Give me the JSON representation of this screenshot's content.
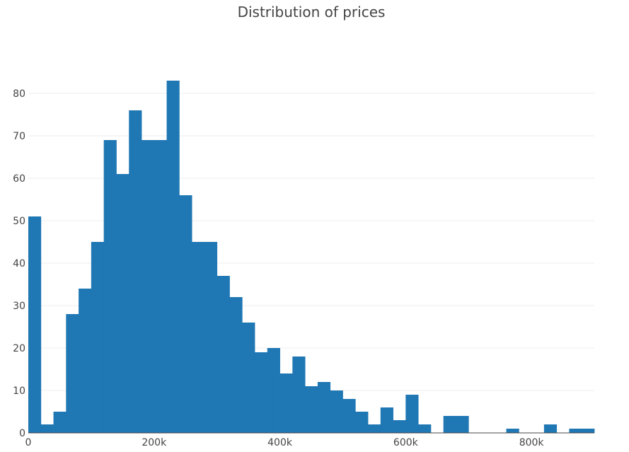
{
  "chart_data": {
    "type": "bar",
    "title": "Distribution of prices",
    "xlabel": "",
    "ylabel": "",
    "bin_width": 20000,
    "x_bin_starts": [
      0,
      20000,
      40000,
      60000,
      80000,
      100000,
      120000,
      140000,
      160000,
      180000,
      200000,
      220000,
      240000,
      260000,
      280000,
      300000,
      320000,
      340000,
      360000,
      380000,
      400000,
      420000,
      440000,
      460000,
      480000,
      500000,
      520000,
      540000,
      560000,
      580000,
      600000,
      620000,
      640000,
      660000,
      680000,
      700000,
      720000,
      740000,
      760000,
      780000,
      800000,
      820000,
      840000,
      860000,
      880000
    ],
    "values": [
      51,
      2,
      5,
      28,
      34,
      45,
      69,
      61,
      76,
      69,
      69,
      83,
      56,
      45,
      45,
      37,
      32,
      26,
      19,
      20,
      14,
      18,
      11,
      12,
      10,
      8,
      5,
      2,
      6,
      3,
      9,
      2,
      0,
      4,
      4,
      0,
      0,
      0,
      1,
      0,
      0,
      2,
      0,
      1,
      1
    ],
    "xlim": [
      0,
      900000
    ],
    "ylim": [
      0,
      88
    ],
    "x_ticks": [
      0,
      200000,
      400000,
      600000,
      800000
    ],
    "x_tick_labels": [
      "0",
      "200k",
      "400k",
      "600k",
      "800k"
    ],
    "y_ticks": [
      0,
      10,
      20,
      30,
      40,
      50,
      60,
      70,
      80
    ],
    "y_tick_labels": [
      "0",
      "10",
      "20",
      "30",
      "40",
      "50",
      "60",
      "70",
      "80"
    ],
    "grid": true,
    "bar_color": "#1f77b4"
  }
}
